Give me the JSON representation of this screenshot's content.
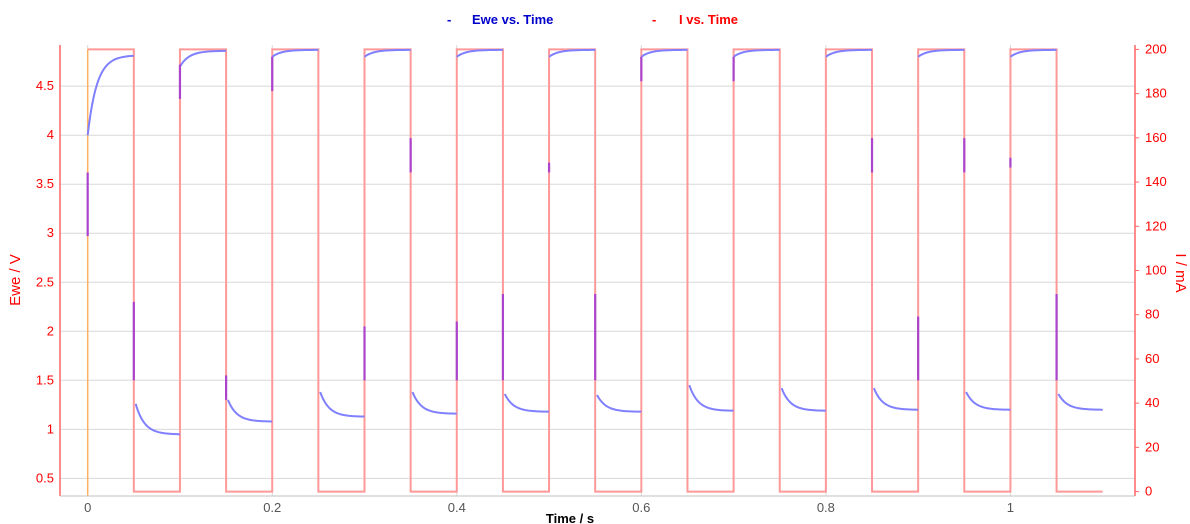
{
  "chart_data": {
    "type": "line",
    "xlabel": "Time / s",
    "ylabel_left": "Ewe / V",
    "ylabel_right": "I / mA",
    "xlim": [
      -0.03,
      1.135
    ],
    "ylim_left": [
      0.32,
      4.92
    ],
    "ylim_right": [
      -2,
      202
    ],
    "x_ticks": [
      "0",
      "0.2",
      "0.4",
      "0.6",
      "0.8",
      "1"
    ],
    "y_left_ticks": [
      "0.5",
      "1",
      "1.5",
      "2",
      "2.5",
      "3",
      "3.5",
      "4",
      "4.5"
    ],
    "y_right_ticks": [
      "0",
      "20",
      "40",
      "60",
      "80",
      "100",
      "120",
      "140",
      "160",
      "180",
      "200"
    ],
    "grid": true,
    "legend_position": "top-center",
    "colors": {
      "ewe": "#8080ff",
      "ewe_legend": "#0000cc",
      "current": "#ff9999",
      "current_legend": "#ff0000",
      "axis_text": "#ff0000",
      "spike": "#aa44cc",
      "grid": "#d8d8d8"
    },
    "pulse_period_s": 0.1,
    "pulse_on_duration_s": 0.05,
    "current_on_mA": 200,
    "current_off_mA": 0,
    "series": [
      {
        "name": "Ewe vs. Time",
        "axis": "left",
        "charge_segments": [
          {
            "start": 0.0,
            "end": 0.05,
            "v_start": 4.0,
            "v_end": 4.81
          },
          {
            "start": 0.1,
            "end": 0.15,
            "v_start": 4.7,
            "v_end": 4.86
          },
          {
            "start": 0.2,
            "end": 0.25,
            "v_start": 4.8,
            "v_end": 4.87
          },
          {
            "start": 0.3,
            "end": 0.35,
            "v_start": 4.8,
            "v_end": 4.87
          },
          {
            "start": 0.4,
            "end": 0.45,
            "v_start": 4.8,
            "v_end": 4.87
          },
          {
            "start": 0.5,
            "end": 0.55,
            "v_start": 4.8,
            "v_end": 4.87
          },
          {
            "start": 0.6,
            "end": 0.65,
            "v_start": 4.8,
            "v_end": 4.87
          },
          {
            "start": 0.7,
            "end": 0.75,
            "v_start": 4.8,
            "v_end": 4.87
          },
          {
            "start": 0.8,
            "end": 0.85,
            "v_start": 4.8,
            "v_end": 4.87
          },
          {
            "start": 0.9,
            "end": 0.95,
            "v_start": 4.8,
            "v_end": 4.87
          },
          {
            "start": 1.0,
            "end": 1.05,
            "v_start": 4.8,
            "v_end": 4.87
          }
        ],
        "rest_segments": [
          {
            "start": 0.052,
            "end": 0.1,
            "v_start": 1.26,
            "v_end": 0.95
          },
          {
            "start": 0.152,
            "end": 0.2,
            "v_start": 1.3,
            "v_end": 1.08
          },
          {
            "start": 0.252,
            "end": 0.3,
            "v_start": 1.38,
            "v_end": 1.13
          },
          {
            "start": 0.352,
            "end": 0.4,
            "v_start": 1.38,
            "v_end": 1.16
          },
          {
            "start": 0.452,
            "end": 0.5,
            "v_start": 1.36,
            "v_end": 1.18
          },
          {
            "start": 0.552,
            "end": 0.6,
            "v_start": 1.35,
            "v_end": 1.18
          },
          {
            "start": 0.652,
            "end": 0.7,
            "v_start": 1.45,
            "v_end": 1.19
          },
          {
            "start": 0.752,
            "end": 0.8,
            "v_start": 1.42,
            "v_end": 1.19
          },
          {
            "start": 0.852,
            "end": 0.9,
            "v_start": 1.42,
            "v_end": 1.2
          },
          {
            "start": 0.952,
            "end": 1.0,
            "v_start": 1.38,
            "v_end": 1.2
          },
          {
            "start": 1.052,
            "end": 1.1,
            "v_start": 1.36,
            "v_end": 1.2
          }
        ],
        "transition_spikes": [
          {
            "t": 0.0,
            "v_low": 2.97,
            "v_high": 3.62
          },
          {
            "t": 0.05,
            "v_low": 1.5,
            "v_high": 2.3
          },
          {
            "t": 0.1,
            "v_low": 4.37,
            "v_high": 4.72
          },
          {
            "t": 0.15,
            "v_low": 1.3,
            "v_high": 1.55
          },
          {
            "t": 0.2,
            "v_low": 4.45,
            "v_high": 4.8
          },
          {
            "t": 0.3,
            "v_low": 1.5,
            "v_high": 2.05
          },
          {
            "t": 0.35,
            "v_low": 3.62,
            "v_high": 3.97
          },
          {
            "t": 0.4,
            "v_low": 1.5,
            "v_high": 2.1
          },
          {
            "t": 0.45,
            "v_low": 1.5,
            "v_high": 2.38
          },
          {
            "t": 0.5,
            "v_low": 3.62,
            "v_high": 3.72
          },
          {
            "t": 0.55,
            "v_low": 1.5,
            "v_high": 2.38
          },
          {
            "t": 0.6,
            "v_low": 4.55,
            "v_high": 4.8
          },
          {
            "t": 0.7,
            "v_low": 4.55,
            "v_high": 4.8
          },
          {
            "t": 0.85,
            "v_low": 3.62,
            "v_high": 3.97
          },
          {
            "t": 0.9,
            "v_low": 1.5,
            "v_high": 2.15
          },
          {
            "t": 0.95,
            "v_low": 3.62,
            "v_high": 3.97
          },
          {
            "t": 1.0,
            "v_low": 3.67,
            "v_high": 3.77
          },
          {
            "t": 1.05,
            "v_low": 1.5,
            "v_high": 2.38
          }
        ]
      },
      {
        "name": "I vs. Time",
        "axis": "right",
        "points": [
          [
            0,
            200
          ],
          [
            0.05,
            200
          ],
          [
            0.05,
            0
          ],
          [
            0.1,
            0
          ],
          [
            0.1,
            200
          ],
          [
            0.15,
            200
          ],
          [
            0.15,
            0
          ],
          [
            0.2,
            0
          ],
          [
            0.2,
            200
          ],
          [
            0.25,
            200
          ],
          [
            0.25,
            0
          ],
          [
            0.3,
            0
          ],
          [
            0.3,
            200
          ],
          [
            0.35,
            200
          ],
          [
            0.35,
            0
          ],
          [
            0.4,
            0
          ],
          [
            0.4,
            200
          ],
          [
            0.45,
            200
          ],
          [
            0.45,
            0
          ],
          [
            0.5,
            0
          ],
          [
            0.5,
            200
          ],
          [
            0.55,
            200
          ],
          [
            0.55,
            0
          ],
          [
            0.6,
            0
          ],
          [
            0.6,
            200
          ],
          [
            0.65,
            200
          ],
          [
            0.65,
            0
          ],
          [
            0.7,
            0
          ],
          [
            0.7,
            200
          ],
          [
            0.75,
            200
          ],
          [
            0.75,
            0
          ],
          [
            0.8,
            0
          ],
          [
            0.8,
            200
          ],
          [
            0.85,
            200
          ],
          [
            0.85,
            0
          ],
          [
            0.9,
            0
          ],
          [
            0.9,
            200
          ],
          [
            0.95,
            200
          ],
          [
            0.95,
            0
          ],
          [
            1.0,
            0
          ],
          [
            1.0,
            200
          ],
          [
            1.05,
            200
          ],
          [
            1.05,
            0
          ],
          [
            1.1,
            0
          ]
        ]
      }
    ]
  },
  "legend": {
    "ewe_marker": "-",
    "ewe_label": "Ewe vs. Time",
    "current_marker": "-",
    "current_label": "I vs. Time"
  }
}
